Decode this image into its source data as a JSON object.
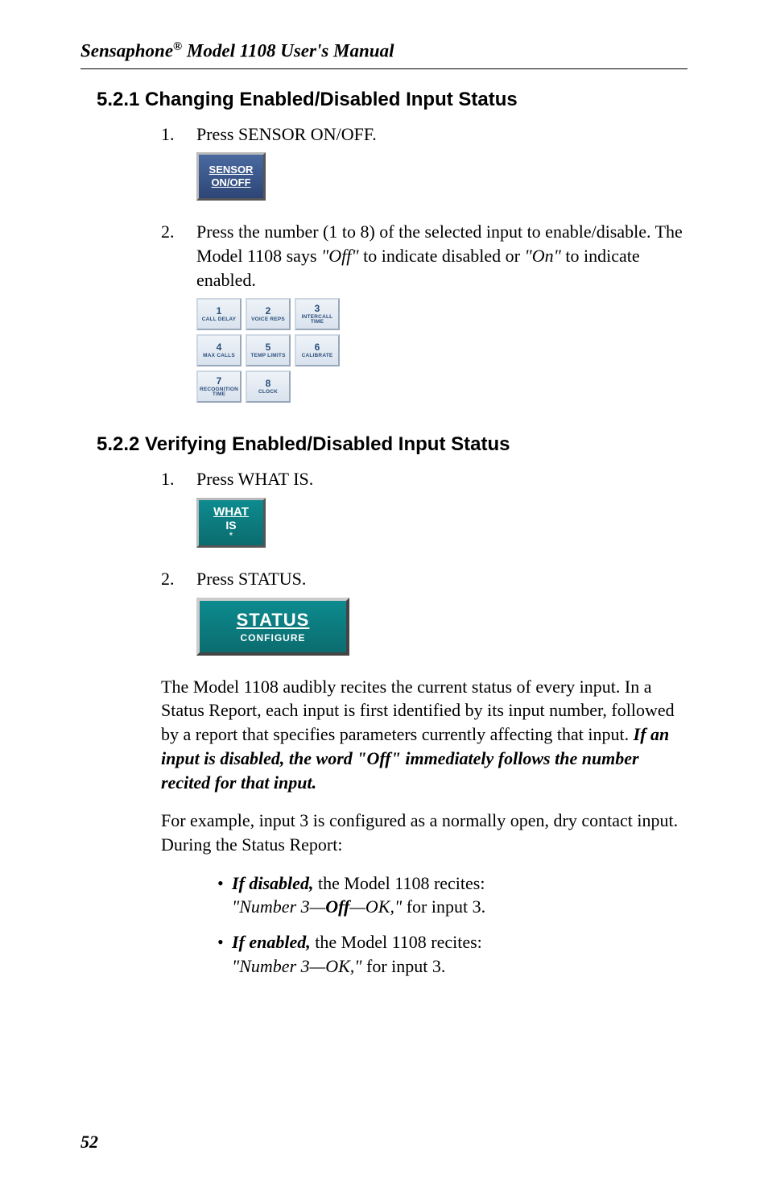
{
  "header": {
    "title_pre": "Sensaphone",
    "title_sup": "®",
    "title_post": " Model 1108 User's Manual"
  },
  "section_1": {
    "heading": "5.2.1  Changing Enabled/Disabled Input Status",
    "step1_num": "1.",
    "step1_text": "Press SENSOR ON/OFF.",
    "sensor_btn": {
      "l1": "SENSOR",
      "l2": "ON/OFF"
    },
    "step2_num": "2.",
    "step2_pre": "Press the number (1 to 8) of the selected input to enable/disable. The Model 1108 says ",
    "step2_q1": "\"Off\"",
    "step2_mid": " to indicate disabled or ",
    "step2_q2": "\"On\"",
    "step2_post": " to indicate enabled.",
    "keypad": [
      [
        {
          "n": "1",
          "l": "CALL DELAY"
        },
        {
          "n": "2",
          "l": "VOICE REPS"
        },
        {
          "n": "3",
          "l": "INTERCALL TIME"
        }
      ],
      [
        {
          "n": "4",
          "l": "MAX CALLS"
        },
        {
          "n": "5",
          "l": "TEMP LIMITS"
        },
        {
          "n": "6",
          "l": "CALIBRATE"
        }
      ],
      [
        {
          "n": "7",
          "l": "RECOGNITION TIME"
        },
        {
          "n": "8",
          "l": "CLOCK"
        }
      ]
    ]
  },
  "section_2": {
    "heading": "5.2.2  Verifying Enabled/Disabled Input Status",
    "step1_num": "1.",
    "step1_text": "Press WHAT IS.",
    "what_btn": {
      "l1": "WHAT",
      "l2": "IS",
      "l3": "*"
    },
    "step2_num": "2.",
    "step2_text": "Press STATUS.",
    "status_btn": {
      "l1": "STATUS",
      "l2": "CONFIGURE"
    },
    "para1_pre": "The Model 1108 audibly recites the current status of every input. In a Status Report, each input is first identified by its input number, followed by a report that specifies parameters currently affecting that input. ",
    "para1_bi": "If an input is disabled, the word \"Off\" immediately follows the number recited for that input.",
    "para2": "For example, input 3 is configured as a normally open, dry contact input. During the Status Report:",
    "bullets": [
      {
        "lead_bi": "If disabled,",
        "lead_post": " the Model 1108 recites:",
        "quote_pre": "\"Number 3—",
        "quote_bi": "Off",
        "quote_post": "—OK,\"",
        "tail": " for input 3."
      },
      {
        "lead_bi": "If enabled,",
        "lead_post": " the Model 1108 recites:",
        "quote_pre": "",
        "quote_bi": "",
        "quote_post": "\"Number 3—OK,\"",
        "tail": " for input 3."
      }
    ]
  },
  "page_number": "52"
}
